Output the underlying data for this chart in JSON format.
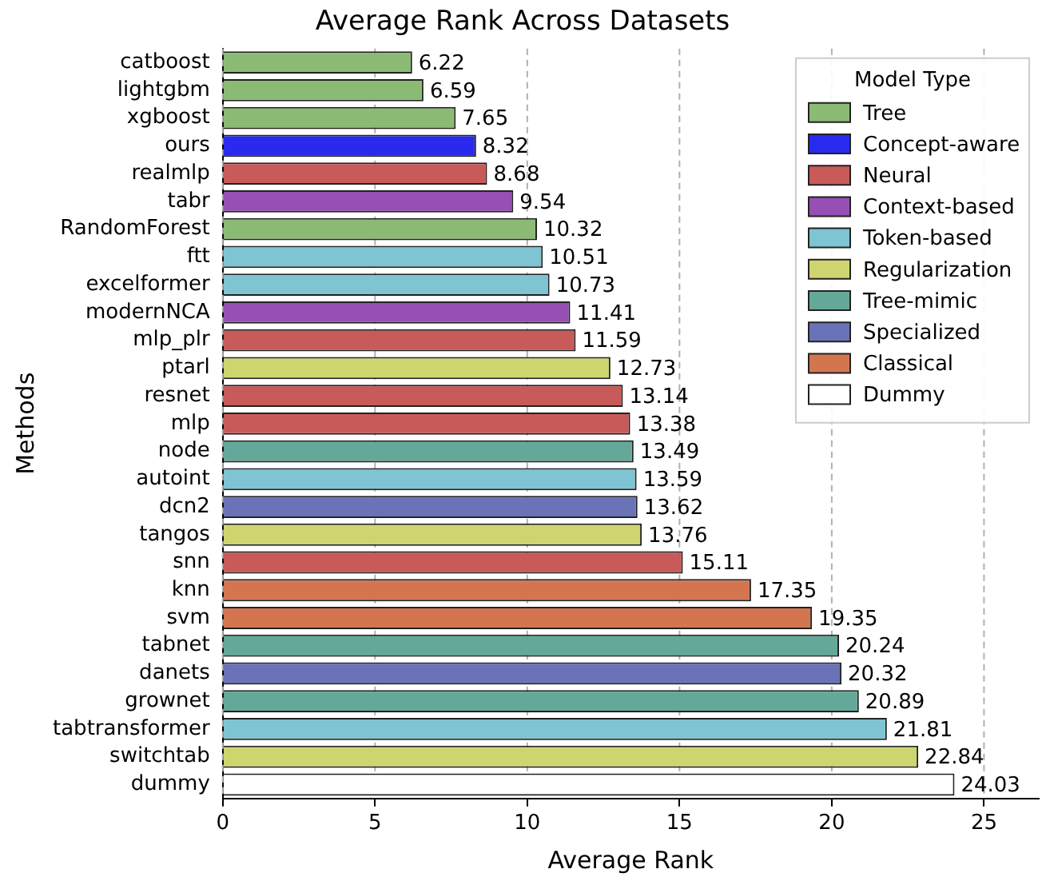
{
  "chart_data": {
    "type": "bar",
    "orientation": "horizontal",
    "stacked": true,
    "title": "Average Rank Across Datasets",
    "xlabel": "Average Rank",
    "ylabel": "Methods",
    "legend_title": "Model Type",
    "legend": "top right",
    "grid": "x",
    "data_labels": true,
    "categories": [
      "catboost",
      "lightgbm",
      "xgboost",
      "ours",
      "realmlp",
      "tabr",
      "RandomForest",
      "ftt",
      "excelformer",
      "modernNCA",
      "mlp_plr",
      "ptarl",
      "resnet",
      "mlp",
      "node",
      "autoint",
      "dcn2",
      "tangos",
      "snn",
      "knn",
      "svm",
      "tabnet",
      "danets",
      "grownet",
      "tabtransformer",
      "switchtab",
      "dummy"
    ],
    "xlim": [
      0,
      26.8
    ],
    "xticks": [
      0,
      5,
      10,
      15,
      20,
      25
    ],
    "series": [
      {
        "name": "Tree",
        "color": "#8bba75",
        "values": [
          6.22,
          6.59,
          7.65,
          null,
          null,
          null,
          10.32,
          null,
          null,
          null,
          null,
          null,
          null,
          null,
          null,
          null,
          null,
          null,
          null,
          null,
          null,
          null,
          null,
          null,
          null,
          null,
          null
        ]
      },
      {
        "name": "Concept-aware",
        "color": "#2a2aee",
        "values": [
          null,
          null,
          null,
          8.32,
          null,
          null,
          null,
          null,
          null,
          null,
          null,
          null,
          null,
          null,
          null,
          null,
          null,
          null,
          null,
          null,
          null,
          null,
          null,
          null,
          null,
          null,
          null
        ]
      },
      {
        "name": "Neural",
        "color": "#c85a5a",
        "values": [
          null,
          null,
          null,
          null,
          8.68,
          null,
          null,
          null,
          null,
          null,
          11.59,
          null,
          13.14,
          13.38,
          null,
          null,
          null,
          null,
          15.11,
          null,
          null,
          null,
          null,
          null,
          null,
          null,
          null
        ]
      },
      {
        "name": "Context-based",
        "color": "#9650b4",
        "values": [
          null,
          null,
          null,
          null,
          null,
          9.54,
          null,
          null,
          null,
          11.41,
          null,
          null,
          null,
          null,
          null,
          null,
          null,
          null,
          null,
          null,
          null,
          null,
          null,
          null,
          null,
          null,
          null
        ]
      },
      {
        "name": "Token-based",
        "color": "#7ec4d2",
        "values": [
          null,
          null,
          null,
          null,
          null,
          null,
          null,
          10.51,
          10.73,
          null,
          null,
          null,
          null,
          null,
          null,
          13.59,
          null,
          null,
          null,
          null,
          null,
          null,
          null,
          null,
          21.81,
          null,
          null
        ]
      },
      {
        "name": "Regularization",
        "color": "#cfd56e",
        "values": [
          null,
          null,
          null,
          null,
          null,
          null,
          null,
          null,
          null,
          null,
          null,
          12.73,
          null,
          null,
          null,
          null,
          null,
          13.76,
          null,
          null,
          null,
          null,
          null,
          null,
          null,
          22.84,
          null
        ]
      },
      {
        "name": "Tree-mimic",
        "color": "#64a89a",
        "values": [
          null,
          null,
          null,
          null,
          null,
          null,
          null,
          null,
          null,
          null,
          null,
          null,
          null,
          null,
          13.49,
          null,
          null,
          null,
          null,
          null,
          null,
          20.24,
          null,
          20.89,
          null,
          null,
          null
        ]
      },
      {
        "name": "Specialized",
        "color": "#6a73b8",
        "values": [
          null,
          null,
          null,
          null,
          null,
          null,
          null,
          null,
          null,
          null,
          null,
          null,
          null,
          null,
          null,
          null,
          13.62,
          null,
          null,
          null,
          null,
          null,
          20.32,
          null,
          null,
          null,
          null
        ]
      },
      {
        "name": "Classical",
        "color": "#d3764f",
        "values": [
          null,
          null,
          null,
          null,
          null,
          null,
          null,
          null,
          null,
          null,
          null,
          null,
          null,
          null,
          null,
          null,
          null,
          null,
          null,
          17.35,
          19.35,
          null,
          null,
          null,
          null,
          null,
          null
        ]
      },
      {
        "name": "Dummy",
        "color": "#ffffff",
        "values": [
          null,
          null,
          null,
          null,
          null,
          null,
          null,
          null,
          null,
          null,
          null,
          null,
          null,
          null,
          null,
          null,
          null,
          null,
          null,
          null,
          null,
          null,
          null,
          null,
          null,
          null,
          24.03
        ]
      }
    ]
  }
}
